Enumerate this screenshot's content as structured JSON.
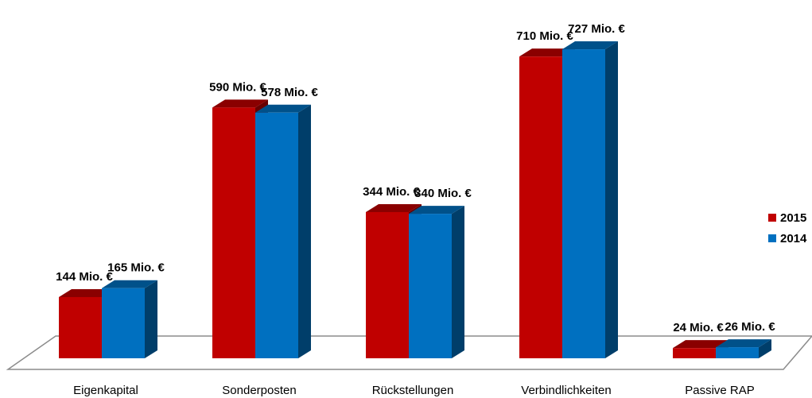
{
  "chart_data": {
    "type": "bar",
    "categories": [
      "Eigenkapital",
      "Sonderposten",
      "Rückstellungen",
      "Verbindlichkeiten",
      "Passive RAP"
    ],
    "series": [
      {
        "name": "2015",
        "color": "#C00000",
        "values": [
          144,
          590,
          344,
          710,
          24
        ],
        "labels": [
          "144 Mio. €",
          "590 Mio. €",
          "344 Mio. €",
          "710 Mio. €",
          "24 Mio. €"
        ]
      },
      {
        "name": "2014",
        "color": "#0070C0",
        "values": [
          165,
          578,
          340,
          727,
          26
        ],
        "labels": [
          "165 Mio. €",
          "578 Mio. €",
          "340 Mio. €",
          "727 Mio. €",
          "26 Mio. €"
        ]
      }
    ],
    "ylim": [
      0,
      760
    ],
    "grid": false,
    "legend_position": "right",
    "three_d": true
  }
}
